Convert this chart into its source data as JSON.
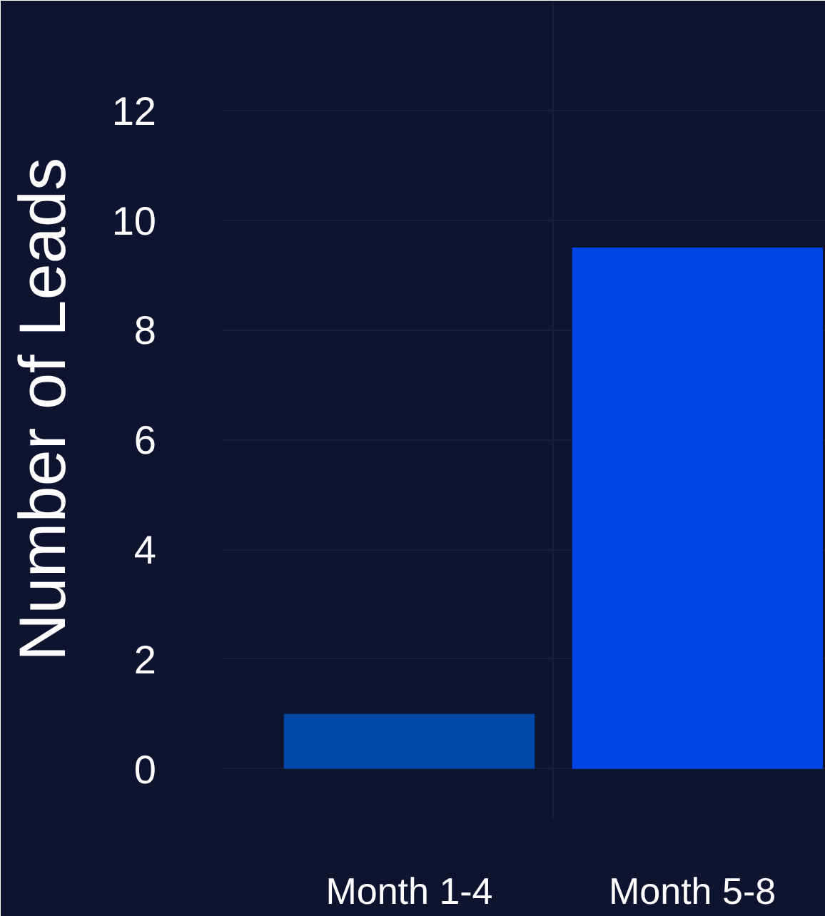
{
  "chart_data": {
    "type": "bar",
    "ylabel": "Number of Leads",
    "categories": [
      "Month 1-4",
      "Month  5-8"
    ],
    "values": [
      1,
      9.5
    ],
    "colors": [
      "#0049a8",
      "#0044e8"
    ],
    "ylim": [
      -0.9,
      14
    ],
    "yticks": [
      0,
      2,
      4,
      6,
      8,
      10,
      12
    ],
    "grid": true
  }
}
